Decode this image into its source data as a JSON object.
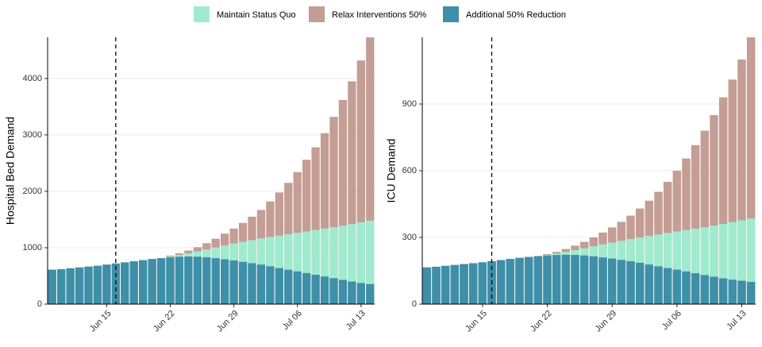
{
  "chart_data": [
    {
      "type": "bar",
      "ylabel": "Hospital Bed Demand",
      "x": [
        "06-09",
        "06-10",
        "06-11",
        "06-12",
        "06-13",
        "06-14",
        "06-15",
        "06-16",
        "06-17",
        "06-18",
        "06-19",
        "06-20",
        "06-21",
        "06-22",
        "06-23",
        "06-24",
        "06-25",
        "06-26",
        "06-27",
        "06-28",
        "06-29",
        "06-30",
        "07-01",
        "07-02",
        "07-03",
        "07-04",
        "07-05",
        "07-06",
        "07-07",
        "07-08",
        "07-09",
        "07-10",
        "07-11",
        "07-12",
        "07-13",
        "07-14"
      ],
      "xticks": [
        {
          "value": "06-15",
          "label": "Jun 15"
        },
        {
          "value": "06-22",
          "label": "Jun 22"
        },
        {
          "value": "06-29",
          "label": "Jun 29"
        },
        {
          "value": "07-06",
          "label": "Jul 06"
        },
        {
          "value": "07-13",
          "label": "Jul 13"
        }
      ],
      "vline": "06-16",
      "ylim": [
        0,
        4730
      ],
      "yticks": [
        0,
        1000,
        2000,
        3000,
        4000
      ],
      "grid": true,
      "series": [
        {
          "name": "Maintain Status Quo",
          "color": "#a0ebcf",
          "values": [
            610,
            620,
            635,
            650,
            665,
            680,
            700,
            720,
            740,
            760,
            780,
            800,
            815,
            845,
            870,
            900,
            935,
            970,
            1005,
            1040,
            1075,
            1105,
            1135,
            1165,
            1190,
            1215,
            1240,
            1265,
            1290,
            1315,
            1340,
            1365,
            1390,
            1420,
            1450,
            1480
          ]
        },
        {
          "name": "Relax Interventions 50%",
          "color": "#c49d94",
          "values": [
            610,
            620,
            635,
            650,
            665,
            680,
            700,
            720,
            740,
            760,
            780,
            800,
            815,
            860,
            900,
            950,
            1010,
            1080,
            1160,
            1250,
            1340,
            1440,
            1550,
            1670,
            1820,
            1980,
            2150,
            2340,
            2560,
            2780,
            3030,
            3320,
            3620,
            3950,
            4320,
            4730
          ]
        },
        {
          "name": "Additional 50% Reduction",
          "color": "#3e8fa8",
          "values": [
            610,
            620,
            635,
            650,
            665,
            680,
            700,
            720,
            740,
            760,
            780,
            800,
            815,
            830,
            840,
            845,
            840,
            830,
            815,
            795,
            775,
            750,
            725,
            700,
            670,
            640,
            610,
            580,
            550,
            520,
            490,
            460,
            430,
            400,
            375,
            355
          ]
        }
      ]
    },
    {
      "type": "bar",
      "ylabel": "ICU Demand",
      "x": [
        "06-09",
        "06-10",
        "06-11",
        "06-12",
        "06-13",
        "06-14",
        "06-15",
        "06-16",
        "06-17",
        "06-18",
        "06-19",
        "06-20",
        "06-21",
        "06-22",
        "06-23",
        "06-24",
        "06-25",
        "06-26",
        "06-27",
        "06-28",
        "06-29",
        "06-30",
        "07-01",
        "07-02",
        "07-03",
        "07-04",
        "07-05",
        "07-06",
        "07-07",
        "07-08",
        "07-09",
        "07-10",
        "07-11",
        "07-12",
        "07-13",
        "07-14"
      ],
      "xticks": [
        {
          "value": "06-15",
          "label": "Jun 15"
        },
        {
          "value": "06-22",
          "label": "Jun 22"
        },
        {
          "value": "06-29",
          "label": "Jun 29"
        },
        {
          "value": "07-06",
          "label": "Jul 06"
        },
        {
          "value": "07-13",
          "label": "Jul 13"
        }
      ],
      "vline": "06-16",
      "ylim": [
        0,
        1200
      ],
      "yticks": [
        0,
        300,
        600,
        900
      ],
      "grid": true,
      "series": [
        {
          "color": "#a0ebcf",
          "values": [
            165,
            168,
            172,
            176,
            180,
            184,
            188,
            193,
            198,
            203,
            208,
            212,
            216,
            222,
            227,
            235,
            243,
            251,
            260,
            269,
            277,
            285,
            293,
            300,
            307,
            313,
            320,
            327,
            333,
            340,
            346,
            353,
            361,
            369,
            377,
            385
          ]
        },
        {
          "color": "#c49d94",
          "values": [
            165,
            168,
            172,
            176,
            180,
            184,
            188,
            193,
            198,
            203,
            208,
            212,
            216,
            225,
            235,
            248,
            263,
            280,
            300,
            322,
            345,
            370,
            398,
            430,
            465,
            505,
            550,
            600,
            655,
            715,
            780,
            850,
            930,
            1010,
            1100,
            1200
          ]
        },
        {
          "color": "#3e8fa8",
          "values": [
            165,
            168,
            172,
            176,
            180,
            184,
            188,
            193,
            198,
            203,
            208,
            212,
            216,
            219,
            221,
            222,
            221,
            219,
            215,
            210,
            205,
            199,
            193,
            186,
            178,
            170,
            162,
            155,
            147,
            139,
            131,
            123,
            116,
            110,
            105,
            100
          ]
        }
      ]
    }
  ]
}
